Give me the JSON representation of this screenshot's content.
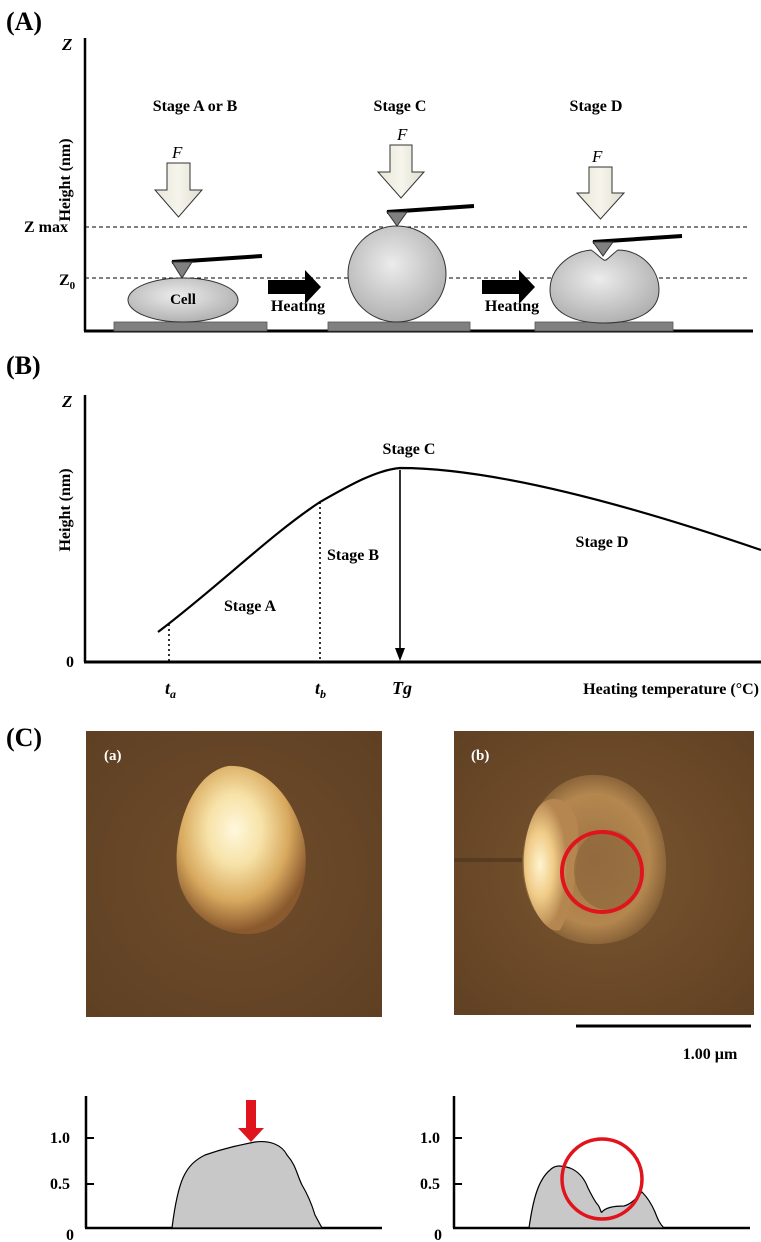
{
  "panel_a": {
    "label": "(A)",
    "z_axis": "Z",
    "y_axis_label": "Height (nm)",
    "z_max_label": "Z max",
    "z0_label": "Z",
    "z0_sub": "0",
    "force_label": "F",
    "stage_ab": "Stage A or B",
    "stage_c": "Stage C",
    "stage_d": "Stage D",
    "cell_label": "Cell",
    "heating_1": "Heating",
    "heating_2": "Heating"
  },
  "panel_b": {
    "label": "(B)",
    "z_axis": "Z",
    "y_axis_label": "Height (nm)",
    "origin_label": "0",
    "x_axis_label": "Heating temperature (°C)",
    "stage_a": "Stage A",
    "stage_b": "Stage B",
    "stage_c": "Stage C",
    "stage_d": "Stage D",
    "ta_main": "t",
    "ta_sub": "a",
    "tb_main": "t",
    "tb_sub": "b",
    "tg": "Tg"
  },
  "panel_c": {
    "label": "(C)",
    "image_a_label": "(a)",
    "image_b_label": "(b)",
    "scale_bar_label": "1.00 µm",
    "colors": {
      "afm_background": "#6b4a2a",
      "cell_highlight": "#fff6d8",
      "marker_red": "#e0141c",
      "profile_fill": "#c8c8c8"
    },
    "profile_a": {
      "y_ticks": [
        "1.0",
        "0.5",
        "0"
      ]
    },
    "profile_b": {
      "y_ticks": [
        "1.0",
        "0.5",
        "0"
      ]
    }
  }
}
